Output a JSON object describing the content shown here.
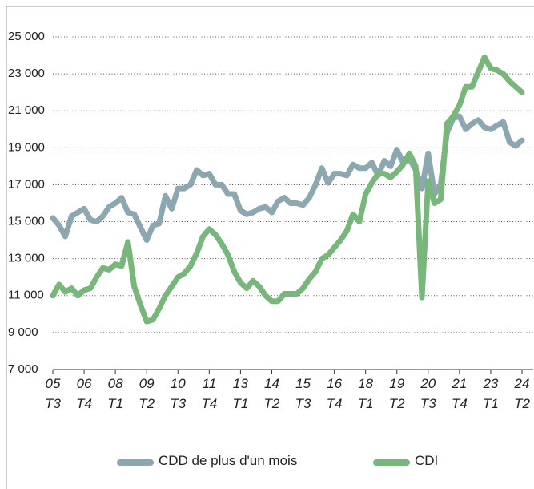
{
  "chart_data": {
    "type": "line",
    "categories": [
      "05\nT3",
      null,
      null,
      null,
      null,
      "06\nT4",
      null,
      null,
      null,
      null,
      "08\nT1",
      null,
      null,
      null,
      null,
      "09\nT2",
      null,
      null,
      null,
      null,
      "10\nT3",
      null,
      null,
      null,
      null,
      "11\nT4",
      null,
      null,
      null,
      null,
      "13\nT1",
      null,
      null,
      null,
      null,
      "14\nT2",
      null,
      null,
      null,
      null,
      "15\nT3",
      null,
      null,
      null,
      null,
      "16\nT4",
      null,
      null,
      null,
      null,
      "18\nT1",
      null,
      null,
      null,
      null,
      "19\nT2",
      null,
      null,
      null,
      null,
      "20\nT3",
      null,
      null,
      null,
      null,
      "21\nT4",
      null,
      null,
      null,
      null,
      "23\nT1",
      null,
      null,
      null,
      null,
      "24\nT2"
    ],
    "series": [
      {
        "name": "CDD de plus d'un mois",
        "color": "#8ca7b0",
        "values": [
          15200,
          14800,
          14200,
          15300,
          15500,
          15700,
          15100,
          15000,
          15300,
          15800,
          16000,
          16300,
          15500,
          15400,
          14700,
          14000,
          14800,
          14900,
          16400,
          15700,
          16800,
          16800,
          17000,
          17800,
          17500,
          17600,
          17000,
          17000,
          16500,
          16500,
          15600,
          15400,
          15500,
          15700,
          15800,
          15500,
          16100,
          16300,
          16000,
          16000,
          15900,
          16300,
          17000,
          17900,
          17100,
          17600,
          17600,
          17500,
          18100,
          17900,
          17900,
          18200,
          17500,
          18300,
          18000,
          18900,
          18200,
          18400,
          17800,
          16800,
          18700,
          16500,
          17000,
          19800,
          20600,
          20700,
          20000,
          20300,
          20500,
          20100,
          20000,
          20200,
          20400,
          19300,
          19100,
          19400
        ]
      },
      {
        "name": "CDI",
        "color": "#78b67b",
        "values": [
          11000,
          11600,
          11200,
          11400,
          11000,
          11300,
          11400,
          12000,
          12500,
          12400,
          12700,
          12600,
          13900,
          11500,
          10500,
          9600,
          9700,
          10300,
          11000,
          11500,
          12000,
          12200,
          12600,
          13300,
          14200,
          14600,
          14300,
          13800,
          13200,
          12300,
          11700,
          11400,
          11800,
          11500,
          11000,
          10700,
          10700,
          11100,
          11100,
          11100,
          11400,
          11900,
          12300,
          13000,
          13200,
          13600,
          14000,
          14500,
          15400,
          15000,
          16500,
          17100,
          17600,
          17600,
          17400,
          17700,
          18100,
          18700,
          18000,
          10900,
          17200,
          16000,
          16200,
          20300,
          20700,
          21300,
          22300,
          22300,
          23100,
          23900,
          23300,
          23200,
          23000,
          22600,
          22300,
          22000
        ]
      }
    ],
    "ylim": [
      7000,
      25000
    ],
    "yticks": [
      {
        "value": 7000,
        "label": "7 000"
      },
      {
        "value": 9000,
        "label": "9 000"
      },
      {
        "value": 11000,
        "label": "11 000"
      },
      {
        "value": 13000,
        "label": "13 000"
      },
      {
        "value": 15000,
        "label": "15 000"
      },
      {
        "value": 17000,
        "label": "17 000"
      },
      {
        "value": 19000,
        "label": "19 000"
      },
      {
        "value": 21000,
        "label": "21 000"
      },
      {
        "value": 23000,
        "label": "23 000"
      },
      {
        "value": 25000,
        "label": "25 000"
      }
    ],
    "grid": true,
    "legend": "bottom"
  }
}
